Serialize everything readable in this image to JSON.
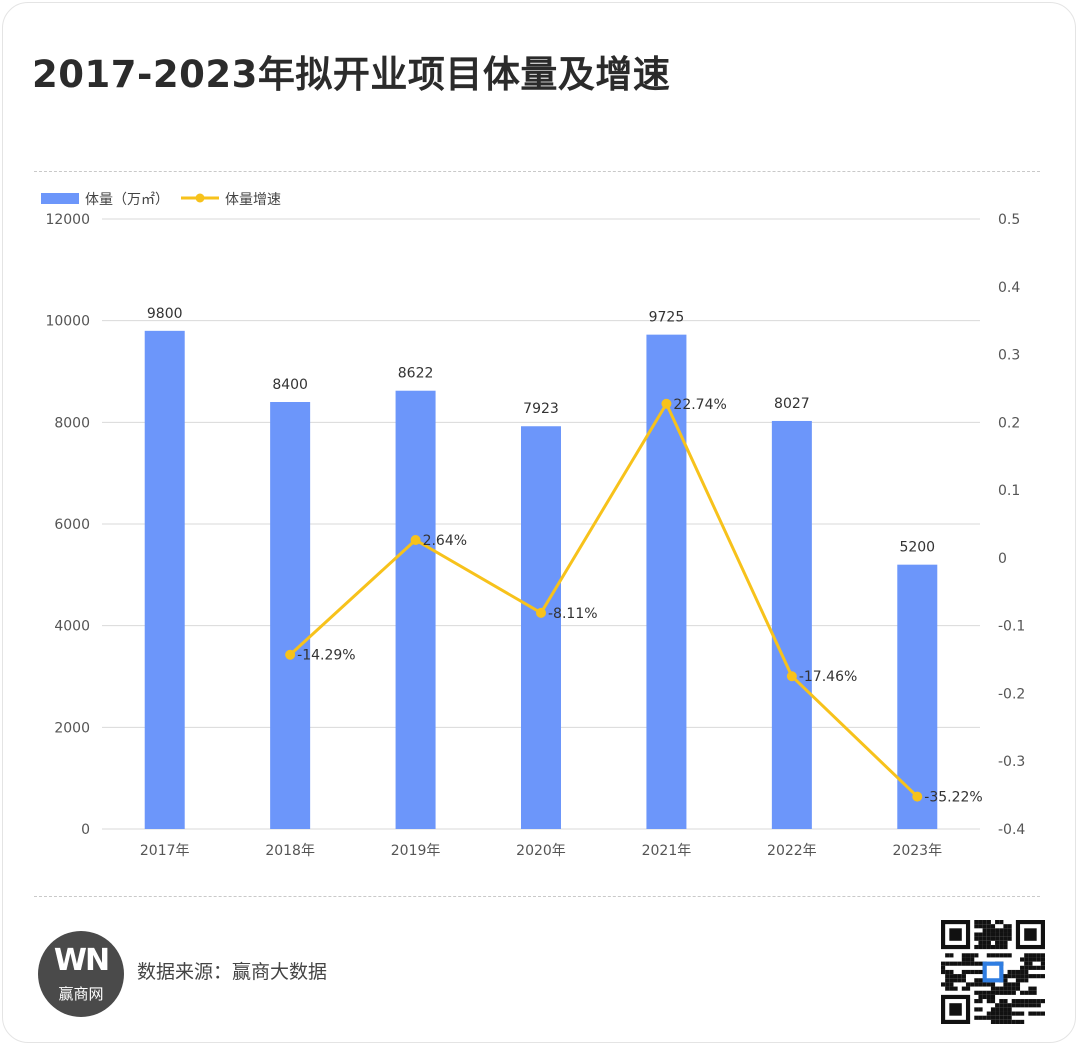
{
  "title": "2017-2023年拟开业项目体量及增速",
  "footer": {
    "source": "数据来源：赢商大数据",
    "logo_mark": "WN",
    "logo_text": "赢商网"
  },
  "colors": {
    "bar": "#6c96fa",
    "line": "#f7c21b",
    "grid": "#d9d9d9",
    "axis_text": "#555555"
  },
  "chart_data": {
    "type": "bar",
    "title": "",
    "categories": [
      "2017年",
      "2018年",
      "2019年",
      "2020年",
      "2021年",
      "2022年",
      "2023年"
    ],
    "legend_position": "top-left",
    "grid": true,
    "y_left": {
      "min": 0,
      "max": 12000,
      "ticks": [
        "0",
        "2000",
        "4000",
        "6000",
        "8000",
        "10000",
        "12000"
      ]
    },
    "y_right": {
      "min": -0.4,
      "max": 0.5,
      "ticks": [
        "-0.4",
        "-0.3",
        "-0.2",
        "-0.1",
        "0",
        "0.1",
        "0.2",
        "0.3",
        "0.4",
        "0.5"
      ]
    },
    "series": [
      {
        "name": "体量（万㎡）",
        "type": "bar",
        "axis": "left",
        "values": [
          9800,
          8400,
          8622,
          7923,
          9725,
          8027,
          5200
        ],
        "labels": [
          "9800",
          "8400",
          "8622",
          "7923",
          "9725",
          "8027",
          "5200"
        ]
      },
      {
        "name": "体量增速",
        "type": "line",
        "axis": "right",
        "values": [
          null,
          -0.1429,
          0.0264,
          -0.0811,
          0.2274,
          -0.1746,
          -0.3522
        ],
        "labels": [
          "",
          "-14.29%",
          "2.64%",
          "-8.11%",
          "22.74%",
          "-17.46%",
          "-35.22%"
        ]
      }
    ]
  }
}
